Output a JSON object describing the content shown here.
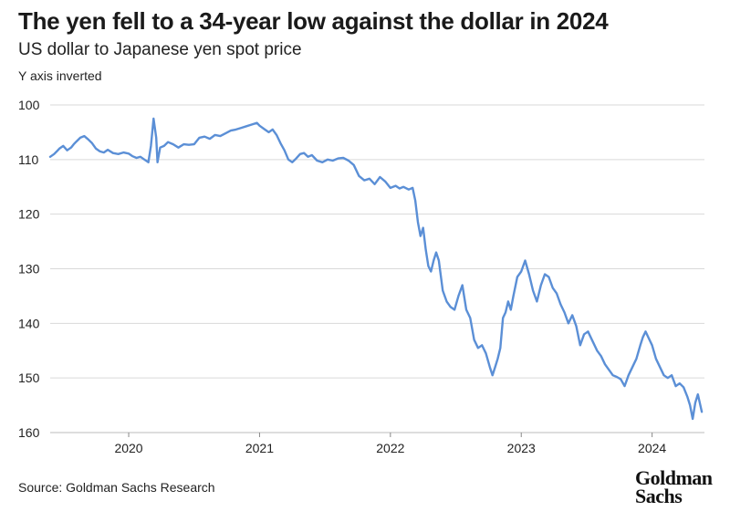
{
  "header": {
    "title": "The yen fell to a 34-year low against the dollar in 2024",
    "subtitle": "US dollar to Japanese yen spot price",
    "note": "Y axis inverted"
  },
  "footer": {
    "source": "Source: Goldman Sachs Research",
    "logo_line1": "Goldman",
    "logo_line2": "Sachs"
  },
  "chart_data": {
    "type": "line",
    "title": "The yen fell to a 34-year low against the dollar in 2024",
    "subtitle": "US dollar to Japanese yen spot price",
    "xlabel": "",
    "ylabel": "",
    "y_inverted": true,
    "ylim": [
      100,
      160
    ],
    "yticks": [
      "100",
      "110",
      "120",
      "130",
      "140",
      "150",
      "160"
    ],
    "xlim": [
      2019.4,
      2024.4
    ],
    "xticks": [
      "2020",
      "2021",
      "2022",
      "2023",
      "2024"
    ],
    "grid": "horizontal",
    "colors": {
      "line": "#5b8fd6",
      "grid": "#d9d9d9",
      "axis": "#bbbbbb"
    },
    "series": [
      {
        "values": [
          [
            2019.4,
            109.5
          ],
          [
            2019.43,
            109.0
          ],
          [
            2019.45,
            108.5
          ],
          [
            2019.47,
            108.0
          ],
          [
            2019.5,
            107.5
          ],
          [
            2019.53,
            108.3
          ],
          [
            2019.56,
            107.8
          ],
          [
            2019.58,
            107.2
          ],
          [
            2019.6,
            106.7
          ],
          [
            2019.63,
            106.0
          ],
          [
            2019.66,
            105.7
          ],
          [
            2019.69,
            106.3
          ],
          [
            2019.72,
            107.0
          ],
          [
            2019.75,
            108.0
          ],
          [
            2019.78,
            108.5
          ],
          [
            2019.81,
            108.7
          ],
          [
            2019.84,
            108.2
          ],
          [
            2019.88,
            108.8
          ],
          [
            2019.92,
            109.0
          ],
          [
            2019.96,
            108.7
          ],
          [
            2020.0,
            108.9
          ],
          [
            2020.03,
            109.4
          ],
          [
            2020.06,
            109.7
          ],
          [
            2020.09,
            109.5
          ],
          [
            2020.12,
            110.0
          ],
          [
            2020.15,
            110.5
          ],
          [
            2020.17,
            107.5
          ],
          [
            2020.19,
            102.5
          ],
          [
            2020.21,
            106.0
          ],
          [
            2020.22,
            110.5
          ],
          [
            2020.24,
            107.8
          ],
          [
            2020.27,
            107.5
          ],
          [
            2020.3,
            106.8
          ],
          [
            2020.34,
            107.2
          ],
          [
            2020.38,
            107.8
          ],
          [
            2020.42,
            107.2
          ],
          [
            2020.46,
            107.3
          ],
          [
            2020.5,
            107.2
          ],
          [
            2020.54,
            106.0
          ],
          [
            2020.58,
            105.8
          ],
          [
            2020.62,
            106.2
          ],
          [
            2020.66,
            105.5
          ],
          [
            2020.7,
            105.7
          ],
          [
            2020.74,
            105.2
          ],
          [
            2020.78,
            104.7
          ],
          [
            2020.82,
            104.5
          ],
          [
            2020.86,
            104.2
          ],
          [
            2020.9,
            103.9
          ],
          [
            2020.94,
            103.6
          ],
          [
            2020.98,
            103.3
          ],
          [
            2021.0,
            103.8
          ],
          [
            2021.04,
            104.5
          ],
          [
            2021.07,
            105.0
          ],
          [
            2021.1,
            104.5
          ],
          [
            2021.13,
            105.5
          ],
          [
            2021.16,
            107.0
          ],
          [
            2021.19,
            108.3
          ],
          [
            2021.22,
            110.0
          ],
          [
            2021.25,
            110.5
          ],
          [
            2021.28,
            109.8
          ],
          [
            2021.31,
            109.0
          ],
          [
            2021.34,
            108.8
          ],
          [
            2021.37,
            109.5
          ],
          [
            2021.4,
            109.2
          ],
          [
            2021.44,
            110.2
          ],
          [
            2021.48,
            110.5
          ],
          [
            2021.52,
            110.0
          ],
          [
            2021.56,
            110.2
          ],
          [
            2021.6,
            109.8
          ],
          [
            2021.64,
            109.7
          ],
          [
            2021.68,
            110.2
          ],
          [
            2021.72,
            111.0
          ],
          [
            2021.76,
            113.0
          ],
          [
            2021.8,
            113.8
          ],
          [
            2021.84,
            113.5
          ],
          [
            2021.88,
            114.5
          ],
          [
            2021.92,
            113.2
          ],
          [
            2021.96,
            114.0
          ],
          [
            2022.0,
            115.2
          ],
          [
            2022.04,
            114.8
          ],
          [
            2022.07,
            115.3
          ],
          [
            2022.1,
            115.0
          ],
          [
            2022.14,
            115.5
          ],
          [
            2022.17,
            115.2
          ],
          [
            2022.19,
            117.5
          ],
          [
            2022.21,
            121.5
          ],
          [
            2022.23,
            124.0
          ],
          [
            2022.25,
            122.5
          ],
          [
            2022.27,
            126.5
          ],
          [
            2022.29,
            129.5
          ],
          [
            2022.31,
            130.5
          ],
          [
            2022.33,
            128.5
          ],
          [
            2022.35,
            127.0
          ],
          [
            2022.37,
            128.5
          ],
          [
            2022.4,
            134.0
          ],
          [
            2022.43,
            136.0
          ],
          [
            2022.46,
            137.0
          ],
          [
            2022.49,
            137.5
          ],
          [
            2022.52,
            135.0
          ],
          [
            2022.55,
            133.0
          ],
          [
            2022.58,
            137.5
          ],
          [
            2022.61,
            139.0
          ],
          [
            2022.64,
            143.0
          ],
          [
            2022.67,
            144.5
          ],
          [
            2022.7,
            144.0
          ],
          [
            2022.73,
            145.5
          ],
          [
            2022.76,
            148.0
          ],
          [
            2022.78,
            149.5
          ],
          [
            2022.8,
            148.0
          ],
          [
            2022.82,
            146.5
          ],
          [
            2022.84,
            144.5
          ],
          [
            2022.86,
            139.0
          ],
          [
            2022.88,
            138.0
          ],
          [
            2022.9,
            136.0
          ],
          [
            2022.92,
            137.5
          ],
          [
            2022.94,
            135.0
          ],
          [
            2022.97,
            131.5
          ],
          [
            2023.0,
            130.5
          ],
          [
            2023.03,
            128.5
          ],
          [
            2023.06,
            131.0
          ],
          [
            2023.09,
            134.0
          ],
          [
            2023.12,
            136.0
          ],
          [
            2023.15,
            133.0
          ],
          [
            2023.18,
            131.0
          ],
          [
            2023.21,
            131.5
          ],
          [
            2023.24,
            133.5
          ],
          [
            2023.27,
            134.5
          ],
          [
            2023.3,
            136.5
          ],
          [
            2023.33,
            138.0
          ],
          [
            2023.36,
            140.0
          ],
          [
            2023.39,
            138.5
          ],
          [
            2023.42,
            140.5
          ],
          [
            2023.45,
            144.0
          ],
          [
            2023.48,
            142.0
          ],
          [
            2023.51,
            141.5
          ],
          [
            2023.55,
            143.5
          ],
          [
            2023.58,
            145.0
          ],
          [
            2023.61,
            146.0
          ],
          [
            2023.64,
            147.5
          ],
          [
            2023.67,
            148.5
          ],
          [
            2023.7,
            149.5
          ],
          [
            2023.73,
            149.8
          ],
          [
            2023.76,
            150.2
          ],
          [
            2023.79,
            151.5
          ],
          [
            2023.82,
            149.5
          ],
          [
            2023.85,
            148.0
          ],
          [
            2023.88,
            146.5
          ],
          [
            2023.91,
            144.0
          ],
          [
            2023.93,
            142.5
          ],
          [
            2023.95,
            141.5
          ],
          [
            2023.97,
            142.5
          ],
          [
            2024.0,
            144.0
          ],
          [
            2024.03,
            146.5
          ],
          [
            2024.06,
            148.0
          ],
          [
            2024.09,
            149.5
          ],
          [
            2024.12,
            150.0
          ],
          [
            2024.15,
            149.5
          ],
          [
            2024.18,
            151.5
          ],
          [
            2024.21,
            151.0
          ],
          [
            2024.24,
            151.7
          ],
          [
            2024.27,
            153.5
          ],
          [
            2024.29,
            155.0
          ],
          [
            2024.31,
            157.5
          ],
          [
            2024.33,
            154.5
          ],
          [
            2024.35,
            153.0
          ],
          [
            2024.38,
            156.2
          ]
        ]
      }
    ]
  }
}
